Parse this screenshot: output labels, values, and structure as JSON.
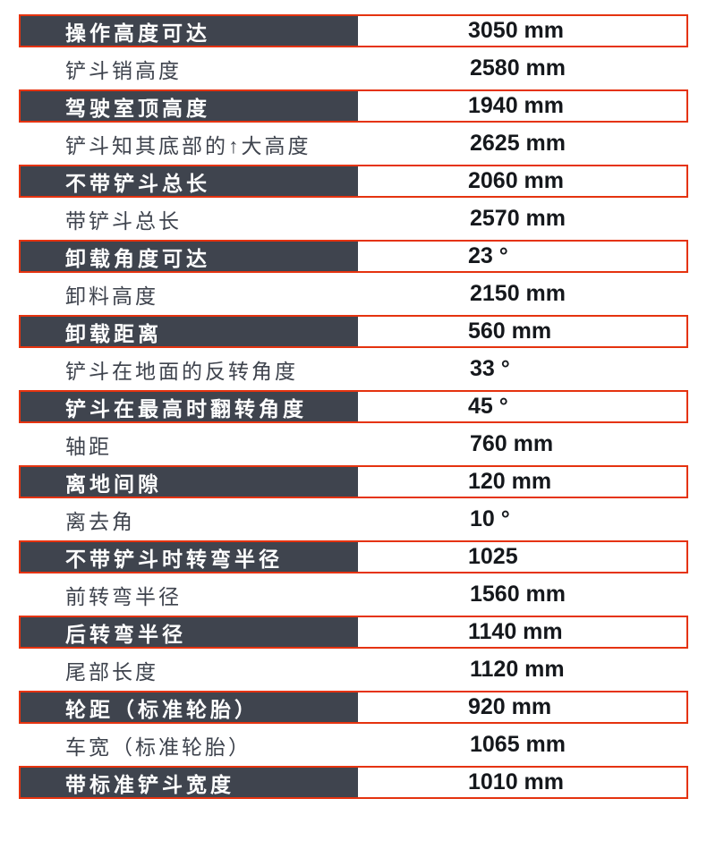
{
  "page": {
    "background": "#ffffff"
  },
  "colors": {
    "accent_red": "#e5330f",
    "row_dark_bg": "#3f444e",
    "dark_label_text": "#ffffff",
    "light_label_text": "#3e434d",
    "value_text": "#15181c"
  },
  "spec_table": {
    "rows": [
      {
        "label": "操作高度可达",
        "value": "3050 mm",
        "emphasized": true
      },
      {
        "label": "铲斗销高度",
        "value": "2580 mm",
        "emphasized": false
      },
      {
        "label": "驾驶室顶高度",
        "value": "1940 mm",
        "emphasized": true
      },
      {
        "label": "铲斗知其底部的↑大高度",
        "value": "2625 mm",
        "emphasized": false
      },
      {
        "label": "不带铲斗总长",
        "value": "2060 mm",
        "emphasized": true
      },
      {
        "label": "带铲斗总长",
        "value": "2570 mm",
        "emphasized": false
      },
      {
        "label": "卸载角度可达",
        "value": "23 °",
        "emphasized": true
      },
      {
        "label": "卸料高度",
        "value": "2150 mm",
        "emphasized": false
      },
      {
        "label": "卸载距离",
        "value": "560 mm",
        "emphasized": true
      },
      {
        "label": "铲斗在地面的反转角度",
        "value": "33 °",
        "emphasized": false
      },
      {
        "label": "铲斗在最高时翻转角度",
        "value": "45 °",
        "emphasized": true
      },
      {
        "label": "轴距",
        "value": "760 mm",
        "emphasized": false
      },
      {
        "label": "离地间隙",
        "value": "120 mm",
        "emphasized": true
      },
      {
        "label": "离去角",
        "value": "10 °",
        "emphasized": false
      },
      {
        "label": "不带铲斗时转弯半径",
        "value": "1025",
        "emphasized": true
      },
      {
        "label": "前转弯半径",
        "value": "1560 mm",
        "emphasized": false
      },
      {
        "label": "后转弯半径",
        "value": "1140 mm",
        "emphasized": true
      },
      {
        "label": "尾部长度",
        "value": "1120 mm",
        "emphasized": false
      },
      {
        "label": "轮距（标准轮胎）",
        "value": "920 mm",
        "emphasized": true
      },
      {
        "label": "车宽（标准轮胎）",
        "value": "1065 mm",
        "emphasized": false
      },
      {
        "label": "带标准铲斗宽度",
        "value": "1010 mm",
        "emphasized": true
      }
    ]
  }
}
